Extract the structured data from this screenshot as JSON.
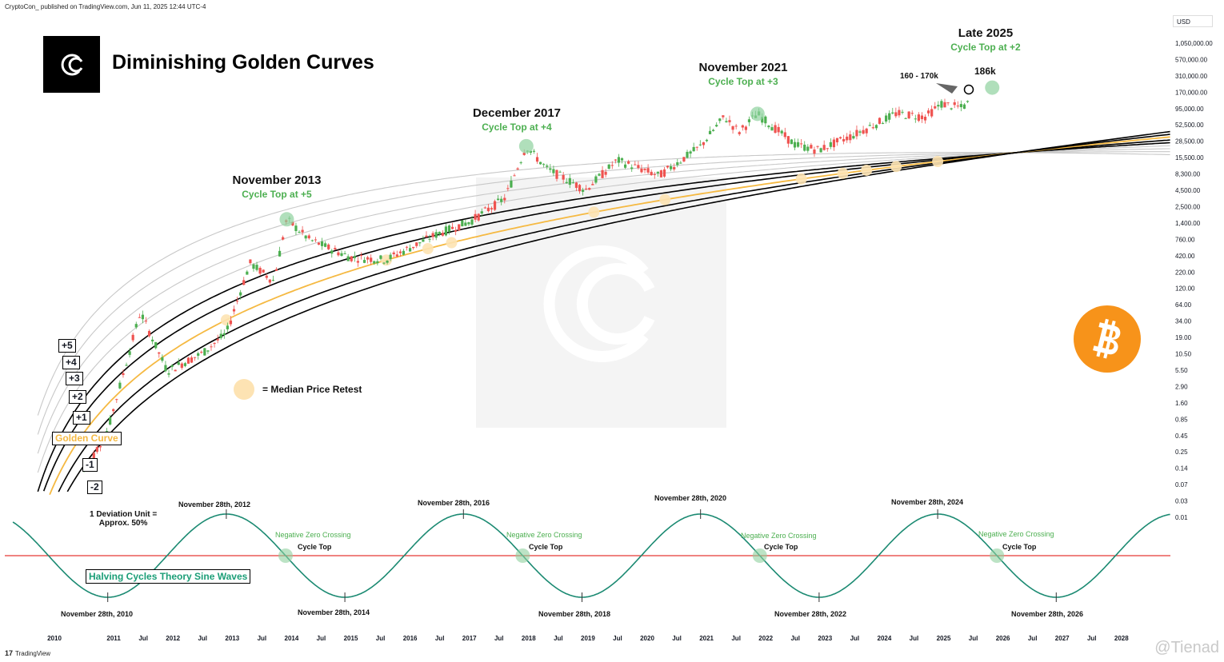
{
  "header": {
    "published_by": "CryptoCon_ published on TradingView.com, Jun 11, 2025 12:44 UTC-4",
    "footer_brand": "TradingView",
    "watermark": "@Tienad",
    "currency": "USD"
  },
  "title": "Diminishing Golden Curves",
  "annotations": {
    "nov2013": {
      "title": "November 2013",
      "sub": "Cycle Top at +5"
    },
    "dec2017": {
      "title": "December 2017",
      "sub": "Cycle Top at +4"
    },
    "nov2021": {
      "title": "November 2021",
      "sub": "Cycle Top at +3"
    },
    "late2025": {
      "title": "Late 2025",
      "sub": "Cycle Top at +2"
    },
    "range": "160 - 170k",
    "target": "186k"
  },
  "legend": {
    "median_retest": "= Median Price Retest"
  },
  "band_labels": [
    "+5",
    "+4",
    "+3",
    "+2",
    "+1",
    "Golden Curve",
    "-1",
    "-2"
  ],
  "deviation_note": {
    "line1": "1 Deviation Unit =",
    "line2": "Approx. 50%"
  },
  "sine_label": "Halving Cycles Theory Sine Waves",
  "sine_peaks": [
    "November 28th, 2012",
    "November 28th, 2016",
    "November 28th, 2020",
    "November 28th, 2024"
  ],
  "sine_troughs": [
    "November 28th, 2010",
    "November 28th, 2014",
    "November 28th, 2018",
    "November 28th, 2022",
    "November 28th, 2026"
  ],
  "zero_crossing": {
    "label": "Negative Zero Crossing",
    "sub": "Cycle Top"
  },
  "colors": {
    "golden": "#f5b942",
    "band": "#000000",
    "band_light": "#c8c8c8",
    "sine": "#1b8a72",
    "zero": "#e53935",
    "up": "#4caf50",
    "down": "#ef5350",
    "bitcoin": "#f7931a",
    "highlight": "#8fd19e",
    "retest": "#fde3b3"
  },
  "chart_data": {
    "type": "line",
    "yscale": "log",
    "y_ticks": [
      "1,050,000.00",
      "570,000.00",
      "310,000.00",
      "170,000.00",
      "95,000.00",
      "52,500.00",
      "28,500.00",
      "15,500.00",
      "8,300.00",
      "4,500.00",
      "2,500.00",
      "1,400.00",
      "760.00",
      "420.00",
      "220.00",
      "120.00",
      "64.00",
      "34.00",
      "19.00",
      "10.50",
      "5.50",
      "2.90",
      "1.60",
      "0.85",
      "0.45",
      "0.25",
      "0.14",
      "0.07",
      "0.03",
      "0.01"
    ],
    "x_ticks": [
      "2010",
      "2011",
      "Jul",
      "2012",
      "Jul",
      "2013",
      "Jul",
      "2014",
      "Jul",
      "2015",
      "Jul",
      "2016",
      "Jul",
      "2017",
      "Jul",
      "2018",
      "Jul",
      "2019",
      "Jul",
      "2020",
      "Jul",
      "2021",
      "Jul",
      "2022",
      "Jul",
      "2023",
      "Jul",
      "2024",
      "Jul",
      "2025",
      "Jul",
      "2026",
      "Jul",
      "2027",
      "Jul",
      "2028"
    ],
    "price_series": {
      "name": "",
      "x": [
        2010.5,
        2010.9,
        2011.45,
        2011.9,
        2012.5,
        2012.9,
        2013.3,
        2013.7,
        2013.92,
        2014.3,
        2015.0,
        2015.6,
        2016.5,
        2017.0,
        2017.6,
        2017.96,
        2018.3,
        2018.96,
        2019.5,
        2020.2,
        2020.9,
        2021.3,
        2021.55,
        2021.86,
        2022.5,
        2022.9,
        2023.5,
        2024.2,
        2024.7,
        2024.96,
        2025.3,
        2025.44
      ],
      "values": [
        0.06,
        0.3,
        30,
        3,
        6,
        13,
        200,
        100,
        1100,
        500,
        250,
        230,
        650,
        1000,
        2500,
        19000,
        8000,
        3500,
        11000,
        6000,
        19000,
        60000,
        33000,
        67000,
        20000,
        16500,
        30000,
        68000,
        60000,
        100000,
        85000,
        105000
      ]
    },
    "curves": [
      "+5",
      "+4",
      "+3",
      "+2",
      "+1",
      "Golden Curve",
      "-1",
      "-2"
    ],
    "cycle_tops": [
      {
        "date": "November 2013",
        "band": "+5"
      },
      {
        "date": "December 2017",
        "band": "+4"
      },
      {
        "date": "November 2021",
        "band": "+3"
      },
      {
        "date": "Late 2025",
        "band": "+2",
        "target": "186k"
      }
    ],
    "sine_wave": {
      "period_years": 4,
      "peak_year": 2012.9,
      "zero_line": 0
    }
  }
}
